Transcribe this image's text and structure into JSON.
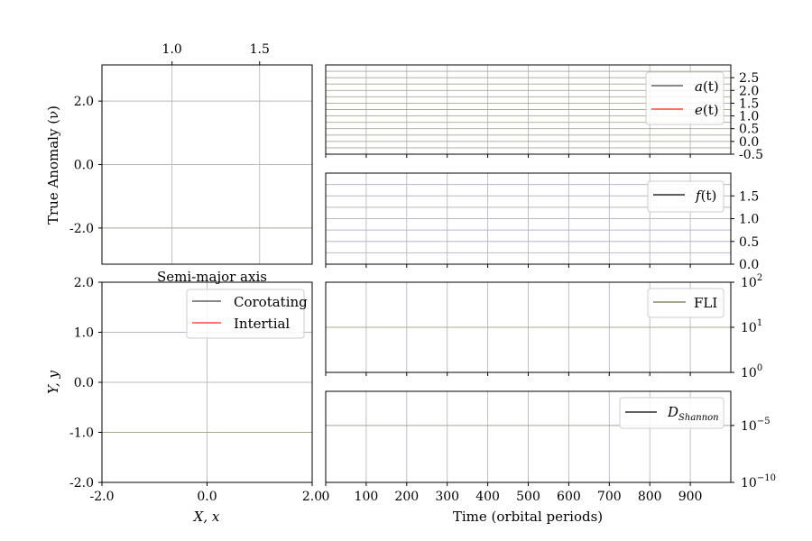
{
  "chart_data": [
    {
      "id": "anomaly",
      "type": "line",
      "title": "",
      "xlabel": "Semi-major axis",
      "ylabel": "True Anomaly (ν)",
      "x_ticks": [
        "1.0",
        "1.5"
      ],
      "x_tick_values": [
        1.0,
        1.5
      ],
      "xlim": [
        0.6,
        1.8
      ],
      "y_ticks": [
        "2.0",
        "0.0",
        "-2.0"
      ],
      "y_tick_values": [
        2.0,
        0.0,
        -2.0
      ],
      "ylim": [
        -3.14,
        3.14
      ],
      "series": [],
      "grid": true
    },
    {
      "id": "orbit",
      "type": "line",
      "title": "",
      "xlabel": "X, x",
      "ylabel": "Y, y",
      "x_ticks": [
        "-2.0",
        "0.0",
        "2.0"
      ],
      "x_tick_values": [
        -2.0,
        0.0,
        2.0
      ],
      "xlim": [
        -2.0,
        2.0
      ],
      "y_ticks": [
        "2.0",
        "1.0",
        "0.0",
        "-1.0",
        "-2.0"
      ],
      "y_tick_values": [
        2.0,
        1.0,
        0.0,
        -1.0,
        -2.0
      ],
      "ylim": [
        -2.0,
        2.0
      ],
      "series": [
        {
          "name": "Corotating",
          "color": "#404040",
          "x": [],
          "y": []
        },
        {
          "name": "Intertial",
          "color": "#ff2020",
          "x": [],
          "y": []
        }
      ],
      "legend": "top-right",
      "grid": true
    },
    {
      "id": "elements",
      "type": "line",
      "xlim": [
        0,
        1000
      ],
      "ylim": [
        -0.5,
        3.0
      ],
      "y_ticks": [
        "2.5",
        "2.0",
        "1.5",
        "1.0",
        "0.5",
        "0.0",
        "-0.5"
      ],
      "y_tick_values": [
        2.5,
        2.0,
        1.5,
        1.0,
        0.5,
        0.0,
        -0.5
      ],
      "series": [
        {
          "name_main": "a",
          "name_arg": "(t)",
          "color": "#404040",
          "x": [],
          "y": []
        },
        {
          "name_main": "e",
          "name_arg": "(t)",
          "color": "#ff2020",
          "x": [],
          "y": []
        }
      ],
      "legend": "top-right",
      "grid": true
    },
    {
      "id": "frequency",
      "type": "line",
      "xlim": [
        0,
        1000
      ],
      "ylim": [
        0.0,
        2.0
      ],
      "y_ticks": [
        "1.5",
        "1.0",
        "0.5",
        "0.0"
      ],
      "y_tick_values": [
        1.5,
        1.0,
        0.5,
        0.0
      ],
      "series": [
        {
          "name_main": "f",
          "name_arg": "(t)",
          "color": "#000000",
          "x": [],
          "y": []
        }
      ],
      "legend": "top-right",
      "grid": true
    },
    {
      "id": "fli",
      "type": "line",
      "yscale": "log",
      "xlim": [
        0,
        1000
      ],
      "ylim": [
        1,
        100
      ],
      "y_ticks": [
        {
          "base": "10",
          "exp": "2"
        },
        {
          "base": "10",
          "exp": "1"
        },
        {
          "base": "10",
          "exp": "0"
        }
      ],
      "y_tick_values": [
        100,
        10,
        1
      ],
      "series": [
        {
          "name": "FLI",
          "color": "#707050",
          "x": [],
          "y": []
        }
      ],
      "legend": "top-right",
      "grid": true
    },
    {
      "id": "shannon",
      "type": "line",
      "yscale": "log",
      "xlabel": "Time (orbital periods)",
      "xlim": [
        0,
        1000
      ],
      "ylim": [
        1e-10,
        0.01
      ],
      "x_ticks": [
        "0",
        "100",
        "200",
        "300",
        "400",
        "500",
        "600",
        "700",
        "800",
        "900"
      ],
      "x_tick_values": [
        0,
        100,
        200,
        300,
        400,
        500,
        600,
        700,
        800,
        900
      ],
      "y_ticks": [
        {
          "base": "10",
          "exp": "−5"
        },
        {
          "base": "10",
          "exp": "−10"
        }
      ],
      "y_tick_values": [
        1e-05,
        1e-10
      ],
      "series": [
        {
          "name_main": "D",
          "name_sub": "Shannon",
          "color": "#000000",
          "x": [],
          "y": []
        }
      ],
      "legend": "top-right",
      "grid": true
    }
  ]
}
